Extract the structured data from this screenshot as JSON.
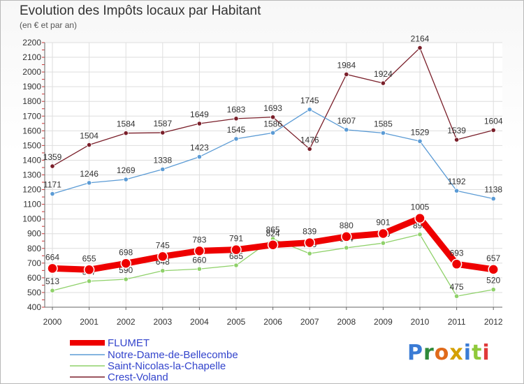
{
  "title": "Evolution des Impôts locaux par Habitant",
  "subtitle": "(en € et par an)",
  "brand": "Proxiti",
  "chart_data": {
    "type": "line",
    "title": "Evolution des Impôts locaux par Habitant",
    "subtitle": "(en € et par an)",
    "xlabel": "",
    "ylabel": "",
    "x": [
      "2000",
      "2001",
      "2002",
      "2003",
      "2004",
      "2005",
      "2006",
      "2007",
      "2008",
      "2009",
      "2010",
      "2011",
      "2012"
    ],
    "ylim": [
      400,
      2200
    ],
    "yticks": [
      400,
      500,
      600,
      700,
      800,
      900,
      1000,
      1100,
      1200,
      1300,
      1400,
      1500,
      1600,
      1700,
      1800,
      1900,
      2000,
      2100,
      2200
    ],
    "grid": true,
    "legend_position": "bottom-left",
    "series": [
      {
        "name": "Crest-Voland",
        "color": "#7a1f2a",
        "values": [
          1359,
          1504,
          1584,
          1587,
          1649,
          1683,
          1693,
          1476,
          1984,
          1924,
          2164,
          1539,
          1604
        ]
      },
      {
        "name": "Notre-Dame-de-Bellecombe",
        "color": "#5b9bd5",
        "values": [
          1171,
          1246,
          1269,
          1338,
          1423,
          1545,
          1586,
          1745,
          1607,
          1585,
          1529,
          1192,
          1138
        ]
      },
      {
        "name": "Saint-Nicolas-la-Chapelle",
        "color": "#8fd16a",
        "values": [
          513,
          577,
          590,
          648,
          660,
          685,
          865,
          765,
          804,
          836,
          895,
          475,
          520
        ]
      },
      {
        "name": "FLUMET",
        "color": "#ee0000",
        "values": [
          664,
          655,
          698,
          745,
          783,
          791,
          824,
          839,
          880,
          901,
          1005,
          693,
          657
        ]
      }
    ],
    "legend": [
      "FLUMET",
      "Notre-Dame-de-Bellecombe",
      "Saint-Nicolas-la-Chapelle",
      "Crest-Voland"
    ]
  }
}
